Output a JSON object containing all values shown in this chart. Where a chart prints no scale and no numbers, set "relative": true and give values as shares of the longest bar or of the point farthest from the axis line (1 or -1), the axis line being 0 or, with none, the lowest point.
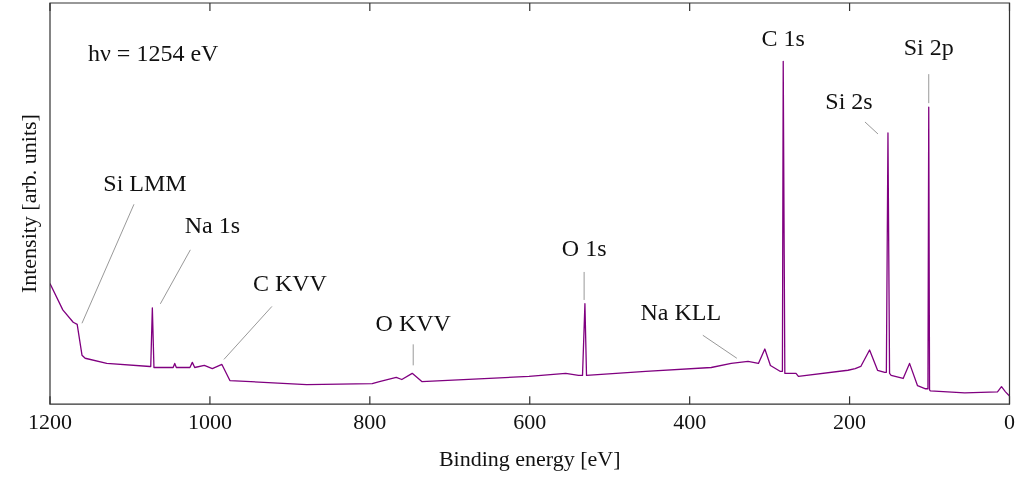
{
  "chart_data": {
    "type": "line",
    "relative": true,
    "xlabel": "Binding energy [eV]",
    "ylabel": "Intensity [arb. units]",
    "xlim": [
      1200,
      0
    ],
    "xticks": [
      1200,
      1000,
      800,
      600,
      400,
      200,
      0
    ],
    "grid": false,
    "legend": false,
    "marker": "none",
    "line_style": "solid",
    "annotations": [
      "hν = 1254 eV",
      {
        "text": "Si LMM",
        "x": 1160,
        "y": 0.236
      },
      {
        "text": "Na 1s",
        "x": 1072,
        "y": 0.281
      },
      {
        "text": "C KVV",
        "x": 985,
        "y": 0.116
      },
      {
        "text": "O KVV",
        "x": 747,
        "y": 0.09
      },
      {
        "text": "O 1s",
        "x": 532,
        "y": 0.304
      },
      {
        "text": "Na KLL",
        "x": 341,
        "y": 0.134
      },
      {
        "text": "C 1s",
        "x": 283,
        "y": 1.0
      },
      {
        "text": "Si 2s",
        "x": 152,
        "y": 0.791
      },
      {
        "text": "Si 2p",
        "x": 101,
        "y": 0.878
      }
    ],
    "series": [
      {
        "color": "#800080",
        "x": [
          1200,
          1184,
          1171,
          1166,
          1160,
          1156,
          1129,
          1075,
          1074,
          1072,
          1070,
          1069,
          1046,
          1044,
          1042,
          1025,
          1022,
          1019,
          1007,
          997,
          985,
          975,
          879,
          797,
          788,
          767,
          760,
          747,
          735,
          601,
          555,
          539,
          534,
          531,
          529,
          455,
          373,
          348,
          327,
          314,
          306,
          299,
          287,
          284,
          283,
          281,
          267,
          264,
          202,
          193,
          186,
          175,
          165,
          156,
          154,
          152,
          150,
          148,
          133,
          125,
          115,
          105,
          102,
          101,
          100,
          99,
          56,
          15,
          10,
          5,
          0
        ],
        "values": [
          0.352,
          0.275,
          0.239,
          0.233,
          0.143,
          0.134,
          0.119,
          0.11,
          0.11,
          0.281,
          0.107,
          0.107,
          0.107,
          0.119,
          0.107,
          0.107,
          0.122,
          0.107,
          0.113,
          0.104,
          0.116,
          0.069,
          0.057,
          0.06,
          0.066,
          0.078,
          0.072,
          0.09,
          0.066,
          0.081,
          0.09,
          0.084,
          0.084,
          0.293,
          0.084,
          0.096,
          0.107,
          0.119,
          0.125,
          0.119,
          0.161,
          0.113,
          0.096,
          0.096,
          1.0,
          0.09,
          0.09,
          0.081,
          0.099,
          0.104,
          0.11,
          0.158,
          0.099,
          0.093,
          0.093,
          0.791,
          0.09,
          0.084,
          0.075,
          0.119,
          0.054,
          0.045,
          0.045,
          0.866,
          0.042,
          0.039,
          0.033,
          0.036,
          0.051,
          0.036,
          0.024
        ]
      }
    ]
  }
}
